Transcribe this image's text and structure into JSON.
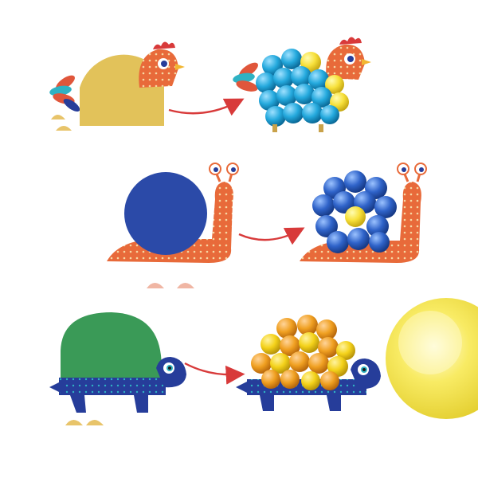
{
  "scene": {
    "background": "#ffffff",
    "rows": [
      {
        "animal": "hen",
        "base_color": "#e2c25a",
        "pompom_colors": [
          "#1fa3d6",
          "#f6e24a"
        ]
      },
      {
        "animal": "snail",
        "base_color": "#2b4aa8",
        "pompom_colors": [
          "#2f63c9",
          "#f7e03a"
        ]
      },
      {
        "animal": "turtle",
        "base_color": "#3a9a57",
        "pompom_colors": [
          "#f0a021",
          "#f4d21a"
        ]
      }
    ],
    "arrow_color": "#d83a3a",
    "card_colors": {
      "orange": "#e86a3a",
      "cream": "#f6d7a3",
      "navy": "#263d9a",
      "teal": "#2fb2c3"
    },
    "big_pompom_color": "#f6e23a",
    "icons": [
      "hen-icon",
      "snail-icon",
      "turtle-icon",
      "arrow-right-icon",
      "pompom-icon"
    ]
  }
}
